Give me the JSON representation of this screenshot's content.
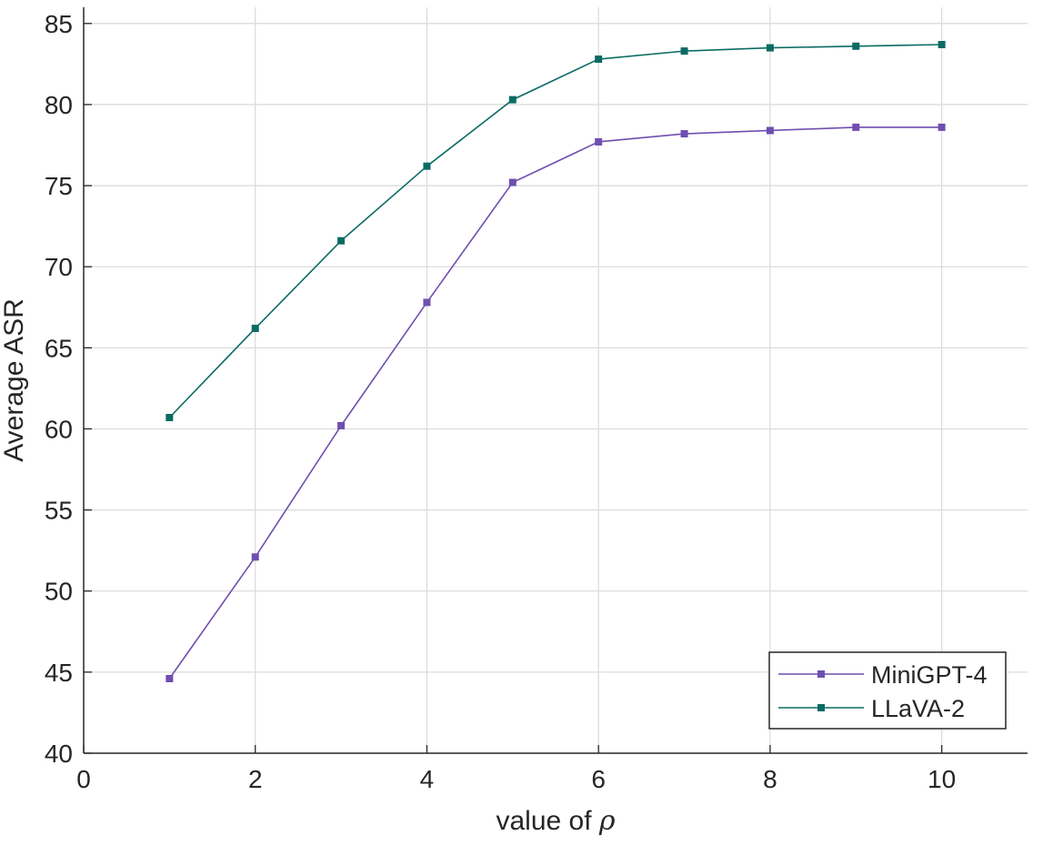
{
  "chart_data": {
    "type": "line",
    "title": "",
    "xlabel": "value of",
    "xlabel_symbol": "ρ",
    "ylabel": "Average ASR",
    "xlim": [
      0,
      11
    ],
    "ylim": [
      40,
      86
    ],
    "xticks": [
      0,
      2,
      4,
      6,
      8,
      10
    ],
    "yticks": [
      40,
      45,
      50,
      55,
      60,
      65,
      70,
      75,
      80,
      85
    ],
    "grid": true,
    "legend_position": "bottom-right",
    "x": [
      1,
      2,
      3,
      4,
      5,
      6,
      7,
      8,
      9,
      10
    ],
    "series": [
      {
        "name": "MiniGPT-4",
        "color": "#6f4fb0",
        "marker": "square",
        "values": [
          44.6,
          52.1,
          60.2,
          67.8,
          75.2,
          77.7,
          78.2,
          78.4,
          78.6,
          78.6
        ]
      },
      {
        "name": "LLaVA-2",
        "color": "#0b6b63",
        "marker": "square",
        "values": [
          60.7,
          66.2,
          71.6,
          76.2,
          80.3,
          82.8,
          83.3,
          83.5,
          83.6,
          83.7
        ]
      }
    ]
  }
}
